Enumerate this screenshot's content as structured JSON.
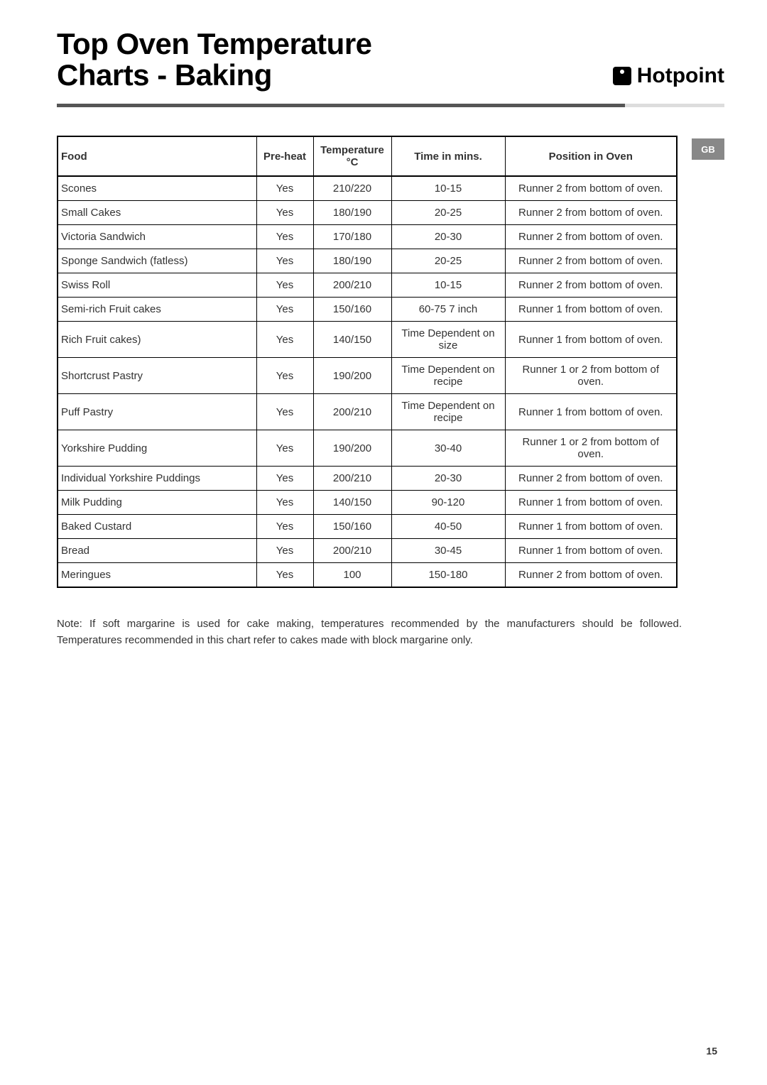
{
  "title_line1": "Top Oven Temperature",
  "title_line2": "Charts - Baking",
  "brand": "Hotpoint",
  "region_tab": "GB",
  "table": {
    "headers": {
      "food": "Food",
      "preheat": "Pre-heat",
      "temp_line1": "Temperature",
      "temp_line2": "°C",
      "time": "Time in mins.",
      "position": "Position in Oven"
    },
    "rows": [
      {
        "food": "Scones",
        "preheat": "Yes",
        "temp": "210/220",
        "time": "10-15",
        "position": "Runner 2 from bottom of oven."
      },
      {
        "food": "Small Cakes",
        "preheat": "Yes",
        "temp": "180/190",
        "time": "20-25",
        "position": "Runner 2 from bottom of oven."
      },
      {
        "food": "Victoria Sandwich",
        "preheat": "Yes",
        "temp": "170/180",
        "time": "20-30",
        "position": "Runner 2 from bottom of oven."
      },
      {
        "food": "Sponge Sandwich (fatless)",
        "preheat": "Yes",
        "temp": "180/190",
        "time": "20-25",
        "position": "Runner 2 from bottom of oven."
      },
      {
        "food": "Swiss Roll",
        "preheat": "Yes",
        "temp": "200/210",
        "time": "10-15",
        "position": "Runner 2 from bottom of oven."
      },
      {
        "food": "Semi-rich Fruit cakes",
        "preheat": "Yes",
        "temp": "150/160",
        "time": "60-75   7 inch",
        "position": "Runner 1 from bottom of oven."
      },
      {
        "food": "Rich Fruit cakes)",
        "preheat": "Yes",
        "temp": "140/150",
        "time": "Time Dependent on size",
        "position": "Runner 1 from bottom of oven."
      },
      {
        "food": "Shortcrust Pastry",
        "preheat": "Yes",
        "temp": "190/200",
        "time": "Time Dependent on recipe",
        "position": "Runner 1 or 2 from bottom of oven."
      },
      {
        "food": "Puff Pastry",
        "preheat": "Yes",
        "temp": "200/210",
        "time": "Time Dependent on recipe",
        "position": "Runner 1 from bottom of oven."
      },
      {
        "food": "Yorkshire Pudding",
        "preheat": "Yes",
        "temp": "190/200",
        "time": "30-40",
        "position": "Runner 1 or 2 from bottom of oven."
      },
      {
        "food": "Individual Yorkshire Puddings",
        "preheat": "Yes",
        "temp": "200/210",
        "time": "20-30",
        "position": "Runner 2 from bottom of oven."
      },
      {
        "food": "Milk Pudding",
        "preheat": "Yes",
        "temp": "140/150",
        "time": "90-120",
        "position": "Runner 1 from bottom of oven."
      },
      {
        "food": "Baked Custard",
        "preheat": "Yes",
        "temp": "150/160",
        "time": "40-50",
        "position": "Runner 1 from bottom of oven."
      },
      {
        "food": "Bread",
        "preheat": "Yes",
        "temp": "200/210",
        "time": "30-45",
        "position": "Runner 1 from bottom of oven."
      },
      {
        "food": "Meringues",
        "preheat": "Yes",
        "temp": "100",
        "time": "150-180",
        "position": "Runner 2 from bottom of oven."
      }
    ]
  },
  "note": "Note: If soft margarine is used for cake making, temperatures recommended by the manufacturers should be followed. Temperatures recommended in this chart refer to cakes made with block margarine only.",
  "page_number": "15",
  "colors": {
    "text": "#333333",
    "border": "#000000",
    "divider": "#555555",
    "divider_light": "#dddddd",
    "tab_bg": "#888888",
    "tab_fg": "#ffffff",
    "background": "#ffffff"
  }
}
